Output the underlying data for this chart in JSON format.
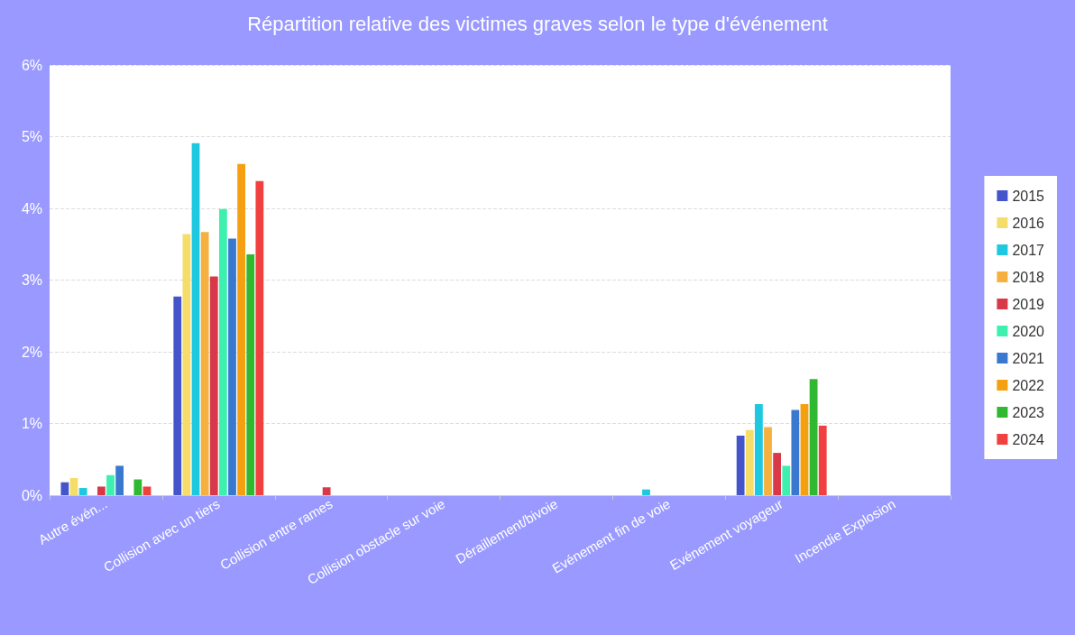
{
  "chart_data": {
    "type": "bar",
    "title": "Répartition relative des victimes graves selon le type d'événement",
    "categories": [
      "Autre évén...",
      "Collision avec un tiers",
      "Collision entre rames",
      "Collision obstacle sur voie",
      "Déraillement/bivoie",
      "Evénement fin de voie",
      "Evénement voyageur",
      "Incendie Explosion"
    ],
    "series": [
      {
        "name": "2015",
        "color": "#4455cc",
        "values": [
          0.18,
          2.77,
          0,
          0,
          0,
          0,
          0.83,
          0
        ]
      },
      {
        "name": "2016",
        "color": "#f5dd6a",
        "values": [
          0.24,
          3.64,
          0,
          0,
          0,
          0,
          0.91,
          0
        ]
      },
      {
        "name": "2017",
        "color": "#1ec8e0",
        "values": [
          0.1,
          4.91,
          0,
          0,
          0,
          0.08,
          1.27,
          0
        ]
      },
      {
        "name": "2018",
        "color": "#f5b040",
        "values": [
          0,
          3.67,
          0,
          0,
          0,
          0,
          0.95,
          0
        ]
      },
      {
        "name": "2019",
        "color": "#d93848",
        "values": [
          0.12,
          3.05,
          0.11,
          0,
          0,
          0,
          0.59,
          0
        ]
      },
      {
        "name": "2020",
        "color": "#3ef0b0",
        "values": [
          0.28,
          3.99,
          0,
          0,
          0,
          0,
          0.41,
          0
        ]
      },
      {
        "name": "2021",
        "color": "#3a78d0",
        "values": [
          0.41,
          3.58,
          0,
          0,
          0,
          0,
          1.19,
          0
        ]
      },
      {
        "name": "2022",
        "color": "#f5a010",
        "values": [
          0,
          4.62,
          0,
          0,
          0,
          0,
          1.27,
          0
        ]
      },
      {
        "name": "2023",
        "color": "#30b830",
        "values": [
          0.22,
          3.36,
          0,
          0,
          0,
          0,
          1.62,
          0
        ]
      },
      {
        "name": "2024",
        "color": "#f04040",
        "values": [
          0.12,
          4.38,
          0,
          0,
          0,
          0,
          0.97,
          0
        ]
      }
    ],
    "ylim": [
      0,
      6
    ],
    "yticks": [
      {
        "value": 0,
        "label": "0%"
      },
      {
        "value": 1,
        "label": "1%"
      },
      {
        "value": 2,
        "label": "2%"
      },
      {
        "value": 3,
        "label": "3%"
      },
      {
        "value": 4,
        "label": "4%"
      },
      {
        "value": 5,
        "label": "5%"
      },
      {
        "value": 6,
        "label": "6%"
      }
    ],
    "grid": "y",
    "legend": "right"
  }
}
